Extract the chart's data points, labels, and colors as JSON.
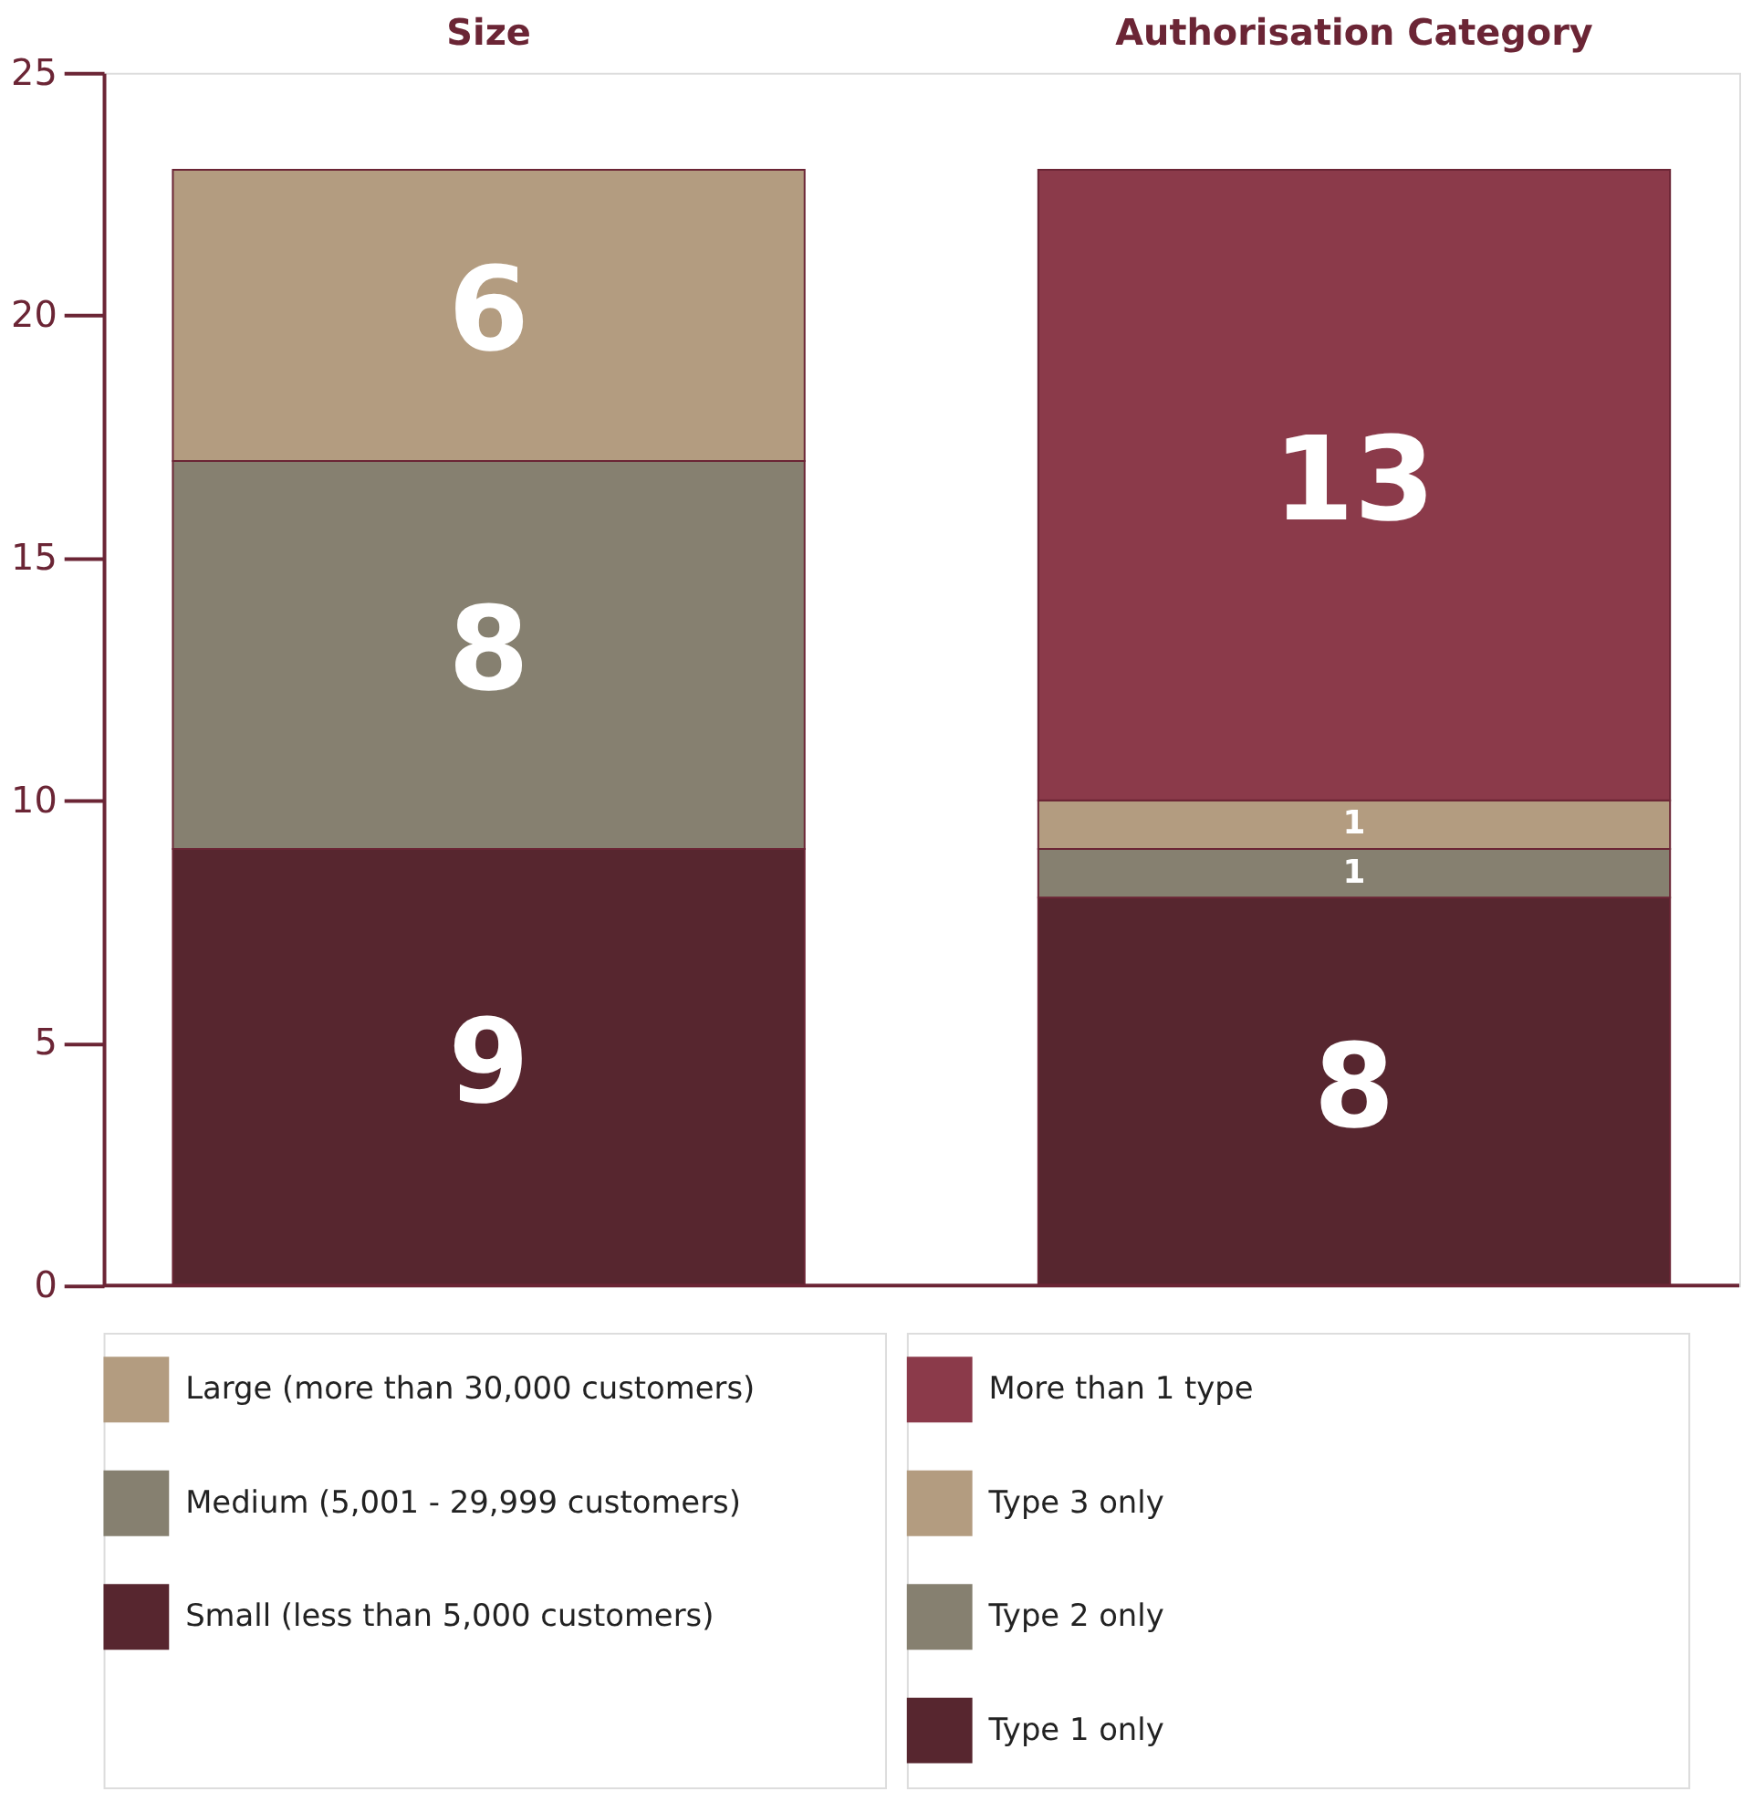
{
  "chart_data": {
    "type": "bar",
    "stacked": true,
    "data_labels": true,
    "legend": "bottom",
    "grid": false,
    "categories": [
      "Size",
      "Authorisation Category"
    ],
    "ylim": [
      0,
      25
    ],
    "yticks": [
      0,
      5,
      10,
      15,
      20,
      25
    ],
    "series": [
      {
        "name": "Small (less than 5,000 customers)",
        "color": "#57262f",
        "values": [
          9,
          null
        ]
      },
      {
        "name": "Medium (5,001 - 29,999 customers)",
        "color": "#868070",
        "values": [
          8,
          null
        ]
      },
      {
        "name": "Large (more than 30,000 customers)",
        "color": "#b39c80",
        "values": [
          6,
          null
        ]
      },
      {
        "name": "Type 1 only",
        "color": "#57262f",
        "values": [
          null,
          8
        ]
      },
      {
        "name": "Type 2 only",
        "color": "#868070",
        "values": [
          null,
          1
        ]
      },
      {
        "name": "Type 3 only",
        "color": "#b39c80",
        "values": [
          null,
          1
        ]
      },
      {
        "name": "More than 1 type",
        "color": "#8b3a4a",
        "values": [
          null,
          13
        ]
      }
    ]
  }
}
